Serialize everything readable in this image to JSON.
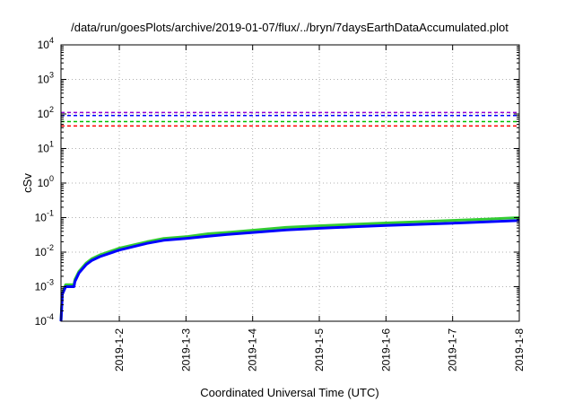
{
  "chart_data": {
    "type": "line",
    "title": "/data/run/goesPlots/archive/2019-01-07/flux/../bryn/7daysEarthDataAccumulated.plot",
    "xlabel": "Coordinated Universal Time (UTC)",
    "ylabel": "cSv",
    "yscale": "log",
    "ylim_exponents": [
      -4,
      4
    ],
    "y_tick_labels": [
      {
        "base": "10",
        "exp": "-4"
      },
      {
        "base": "10",
        "exp": "-3"
      },
      {
        "base": "10",
        "exp": "-2"
      },
      {
        "base": "10",
        "exp": "-1"
      },
      {
        "base": "10",
        "exp": "0"
      },
      {
        "base": "10",
        "exp": "1"
      },
      {
        "base": "10",
        "exp": "2"
      },
      {
        "base": "10",
        "exp": "3"
      },
      {
        "base": "10",
        "exp": "4"
      }
    ],
    "x_range": [
      "2019-01-01 03:00",
      "2019-01-08 00:00"
    ],
    "x_tick_labels": [
      "2019-1-2",
      "2019-1-3",
      "2019-1-4",
      "2019-1-5",
      "2019-1-6",
      "2019-1-7",
      "2019-1-8"
    ],
    "x_tick_dates": [
      "2019-01-02",
      "2019-01-03",
      "2019-01-04",
      "2019-01-05",
      "2019-01-06",
      "2019-01-07",
      "2019-01-08"
    ],
    "grid": true,
    "threshold_lines": [
      {
        "y": 110,
        "color": "#9400d3",
        "style": "dashed"
      },
      {
        "y": 90,
        "color": "#0000ff",
        "style": "dashed"
      },
      {
        "y": 60,
        "color": "#00c000",
        "style": "dashed"
      },
      {
        "y": 45,
        "color": "#ff0000",
        "style": "dashed"
      }
    ],
    "series": [
      {
        "color": "#33cc33",
        "x": [
          "2019-01-01 03:00",
          "2019-01-01 03:30",
          "2019-01-01 04:40",
          "2019-01-01 05:20",
          "2019-01-01 07:40",
          "2019-01-01 08:00",
          "2019-01-01 09:30",
          "2019-01-01 12:00",
          "2019-01-01 14:00",
          "2019-01-01 17:00",
          "2019-01-02 00:00",
          "2019-01-02 10:00",
          "2019-01-02 16:00",
          "2019-01-03 00:00",
          "2019-01-03 08:00",
          "2019-01-03 16:00",
          "2019-01-04 00:00",
          "2019-01-04 12:00",
          "2019-01-05 00:00",
          "2019-01-05 12:00",
          "2019-01-06 00:00",
          "2019-01-06 12:00",
          "2019-01-07 00:00",
          "2019-01-07 12:00",
          "2019-01-08 00:00"
        ],
        "y": [
          0.0001,
          0.00065,
          0.00115,
          0.00115,
          0.00115,
          0.0016,
          0.0028,
          0.0048,
          0.0064,
          0.0083,
          0.013,
          0.02,
          0.025,
          0.028,
          0.034,
          0.038,
          0.043,
          0.052,
          0.058,
          0.064,
          0.07,
          0.076,
          0.083,
          0.09,
          0.1
        ]
      },
      {
        "color": "#0000ff",
        "x": [
          "2019-01-01 03:00",
          "2019-01-01 03:30",
          "2019-01-01 04:40",
          "2019-01-01 05:20",
          "2019-01-01 07:40",
          "2019-01-01 08:00",
          "2019-01-01 09:30",
          "2019-01-01 12:00",
          "2019-01-01 14:00",
          "2019-01-01 17:00",
          "2019-01-02 00:00",
          "2019-01-02 10:00",
          "2019-01-02 16:00",
          "2019-01-03 00:00",
          "2019-01-03 08:00",
          "2019-01-03 16:00",
          "2019-01-04 00:00",
          "2019-01-04 12:00",
          "2019-01-05 00:00",
          "2019-01-05 12:00",
          "2019-01-06 00:00",
          "2019-01-06 12:00",
          "2019-01-07 00:00",
          "2019-01-07 12:00",
          "2019-01-08 00:00"
        ],
        "y": [
          0.0001,
          0.0006,
          0.001,
          0.001,
          0.001,
          0.0014,
          0.0025,
          0.0043,
          0.0057,
          0.0074,
          0.0115,
          0.018,
          0.022,
          0.025,
          0.029,
          0.033,
          0.037,
          0.044,
          0.049,
          0.054,
          0.059,
          0.064,
          0.069,
          0.075,
          0.082
        ]
      }
    ]
  }
}
